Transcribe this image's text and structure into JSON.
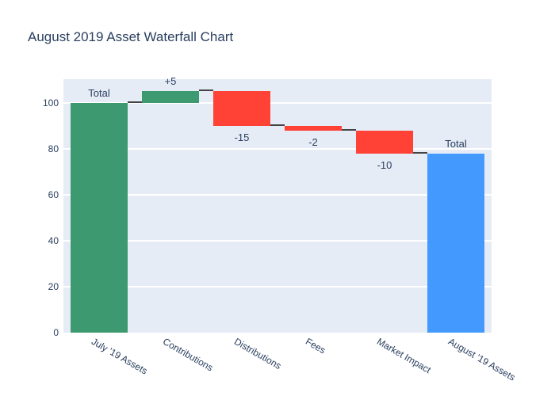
{
  "title": "August 2019 Asset Waterfall Chart",
  "chart_data": {
    "type": "waterfall",
    "title": "August 2019 Asset Waterfall Chart",
    "categories": [
      "July '19 Assets",
      "Contributions",
      "Distributions",
      "Fees",
      "Market Impact",
      "August '19 Assets"
    ],
    "points": [
      {
        "category": "July '19 Assets",
        "measure": "total",
        "value": 100,
        "start": 0,
        "end": 100,
        "text": "Total",
        "text_position": "above",
        "color_role": "increasing"
      },
      {
        "category": "Contributions",
        "measure": "relative",
        "value": 5,
        "start": 100,
        "end": 105,
        "text": "+5",
        "text_position": "above",
        "color_role": "increasing"
      },
      {
        "category": "Distributions",
        "measure": "relative",
        "value": -15,
        "start": 105,
        "end": 90,
        "text": "-15",
        "text_position": "below",
        "color_role": "decreasing"
      },
      {
        "category": "Fees",
        "measure": "relative",
        "value": -2,
        "start": 90,
        "end": 88,
        "text": "-2",
        "text_position": "below",
        "color_role": "decreasing"
      },
      {
        "category": "Market Impact",
        "measure": "relative",
        "value": -10,
        "start": 88,
        "end": 78,
        "text": "-10",
        "text_position": "below",
        "color_role": "decreasing"
      },
      {
        "category": "August '19 Assets",
        "measure": "total",
        "value": 78,
        "start": 0,
        "end": 78,
        "text": "Total",
        "text_position": "above",
        "color_role": "total"
      }
    ],
    "connector_levels": [
      100,
      105,
      90,
      88,
      78
    ],
    "y_ticks": [
      0,
      20,
      40,
      60,
      80,
      100
    ],
    "ylim": [
      0,
      110.3
    ],
    "xlabel": "",
    "ylabel": "",
    "x_tick_angle_deg": 30,
    "grid": true,
    "legend": "none",
    "colors": {
      "increasing": "#3D9970",
      "decreasing": "#FF4136",
      "total": "#4499FF",
      "connector": "#444444",
      "plot_background": "#E5ECF6",
      "gridline": "#FFFFFF",
      "text": "#2A3F5F",
      "paper_background": "#FFFFFF"
    }
  }
}
